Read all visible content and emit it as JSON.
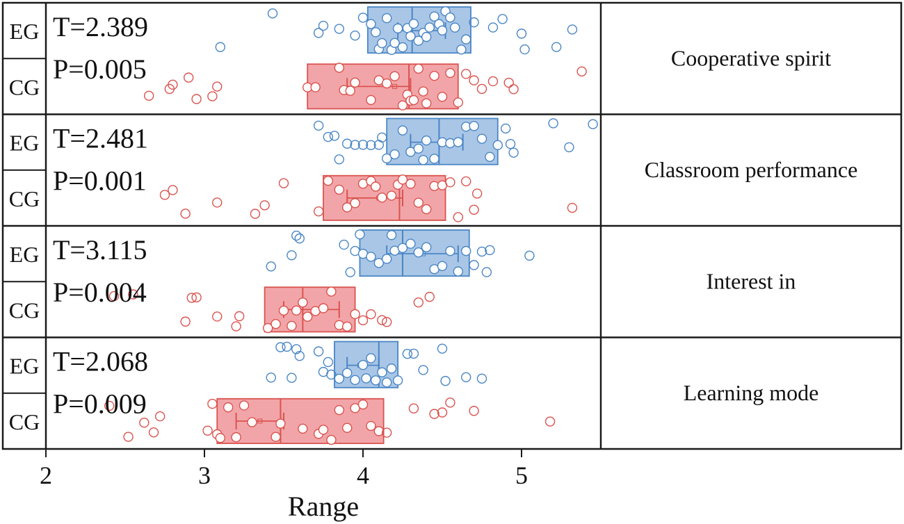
{
  "chart_data": {
    "type": "box",
    "xlabel": "Range",
    "xlim": [
      2,
      5.5
    ],
    "xticks": [
      2,
      3,
      4,
      5
    ],
    "group_labels": [
      "EG",
      "CG"
    ],
    "colors": {
      "EG": "#4a86c5",
      "EG_fill": "#a9c6e6",
      "CG": "#d9534f",
      "CG_fill": "#f2a5a8",
      "frame": "#1a1a1a"
    },
    "panels": [
      {
        "label": "Cooperative spirit",
        "stats": {
          "t": "T=2.389",
          "p": "P=0.005"
        },
        "EG": {
          "q1": 4.03,
          "median": 4.31,
          "q3": 4.68,
          "mean": 4.38,
          "mean_ci": [
            4.22,
            4.52
          ],
          "points": [
            3.1,
            3.43,
            3.72,
            3.75,
            3.85,
            3.95,
            4.0,
            4.05,
            4.08,
            4.1,
            4.12,
            4.15,
            4.18,
            4.2,
            4.22,
            4.25,
            4.28,
            4.3,
            4.32,
            4.35,
            4.38,
            4.4,
            4.42,
            4.45,
            4.48,
            4.5,
            4.52,
            4.55,
            4.58,
            4.62,
            4.65,
            4.7,
            4.82,
            4.88,
            5.0,
            5.02,
            5.22,
            5.32
          ]
        },
        "CG": {
          "q1": 3.65,
          "median": 4.29,
          "q3": 4.6,
          "mean": 4.2,
          "mean_ci": [
            3.9,
            4.3
          ],
          "points": [
            2.65,
            2.78,
            2.8,
            2.9,
            2.95,
            3.05,
            3.08,
            3.65,
            3.7,
            3.85,
            3.88,
            3.92,
            3.95,
            4.05,
            4.1,
            4.15,
            4.2,
            4.25,
            4.28,
            4.3,
            4.32,
            4.35,
            4.38,
            4.4,
            4.45,
            4.5,
            4.55,
            4.6,
            4.65,
            4.7,
            4.75,
            4.82,
            4.92,
            4.95,
            5.38
          ]
        }
      },
      {
        "label": "Classroom performance",
        "stats": {
          "t": "T=2.481",
          "p": "P=0.001"
        },
        "EG": {
          "q1": 4.15,
          "median": 4.48,
          "q3": 4.85,
          "mean": 4.4,
          "mean_ci": [
            4.3,
            4.63
          ],
          "points": [
            3.72,
            3.78,
            3.82,
            3.85,
            3.9,
            3.95,
            4.0,
            4.05,
            4.1,
            4.12,
            4.15,
            4.2,
            4.25,
            4.3,
            4.35,
            4.38,
            4.4,
            4.45,
            4.5,
            4.55,
            4.6,
            4.65,
            4.7,
            4.75,
            4.8,
            4.85,
            4.9,
            4.93,
            4.95,
            5.2,
            5.3,
            5.45
          ]
        },
        "CG": {
          "q1": 3.75,
          "median": 4.23,
          "q3": 4.52,
          "mean": 4.1,
          "mean_ci": [
            3.9,
            4.25
          ],
          "points": [
            2.75,
            2.8,
            2.88,
            3.08,
            3.32,
            3.38,
            3.5,
            3.72,
            3.78,
            3.85,
            3.9,
            3.95,
            4.0,
            4.05,
            4.08,
            4.12,
            4.18,
            4.22,
            4.25,
            4.3,
            4.35,
            4.4,
            4.45,
            4.5,
            4.55,
            4.6,
            4.65,
            4.7,
            4.72,
            5.32
          ]
        }
      },
      {
        "label": "Interest in",
        "stats": {
          "t": "T=3.115",
          "p": "P=0.004"
        },
        "EG": {
          "q1": 3.98,
          "median": 4.25,
          "q3": 4.67,
          "mean": 4.38,
          "mean_ci": [
            4.15,
            4.6
          ],
          "points": [
            3.42,
            3.55,
            3.58,
            3.6,
            3.88,
            3.92,
            3.95,
            3.98,
            4.0,
            4.05,
            4.1,
            4.15,
            4.18,
            4.2,
            4.25,
            4.3,
            4.35,
            4.4,
            4.45,
            4.5,
            4.55,
            4.6,
            4.65,
            4.7,
            4.75,
            4.78,
            4.8,
            5.05
          ]
        },
        "CG": {
          "q1": 3.38,
          "median": 3.62,
          "q3": 3.95,
          "mean": 3.7,
          "mean_ci": [
            3.5,
            3.85
          ],
          "points": [
            2.43,
            2.55,
            2.88,
            2.92,
            2.95,
            3.08,
            3.2,
            3.22,
            3.4,
            3.45,
            3.5,
            3.55,
            3.58,
            3.62,
            3.65,
            3.7,
            3.75,
            3.8,
            3.85,
            3.9,
            3.95,
            4.0,
            4.05,
            4.12,
            4.15,
            4.35,
            4.42
          ]
        }
      },
      {
        "label": "Learning mode",
        "stats": {
          "t": "T=2.068",
          "p": "P=0.009"
        },
        "EG": {
          "q1": 3.82,
          "median": 4.1,
          "q3": 4.22,
          "mean": 3.98,
          "mean_ci": [
            3.9,
            4.1
          ],
          "points": [
            3.42,
            3.48,
            3.52,
            3.55,
            3.58,
            3.6,
            3.72,
            3.75,
            3.78,
            3.8,
            3.85,
            3.9,
            3.95,
            4.0,
            4.02,
            4.05,
            4.08,
            4.12,
            4.15,
            4.18,
            4.22,
            4.28,
            4.32,
            4.38,
            4.5,
            4.52,
            4.65,
            4.75
          ]
        },
        "CG": {
          "q1": 3.08,
          "median": 3.48,
          "q3": 4.13,
          "mean": 3.35,
          "mean_ci": [
            3.2,
            3.5
          ],
          "points": [
            2.4,
            2.52,
            2.62,
            2.68,
            2.72,
            3.02,
            3.05,
            3.08,
            3.1,
            3.15,
            3.2,
            3.25,
            3.3,
            3.45,
            3.48,
            3.62,
            3.72,
            3.75,
            3.8,
            3.85,
            3.9,
            3.95,
            4.0,
            4.05,
            4.1,
            4.15,
            4.32,
            4.45,
            4.5,
            4.55,
            4.7,
            5.18
          ]
        }
      }
    ]
  }
}
